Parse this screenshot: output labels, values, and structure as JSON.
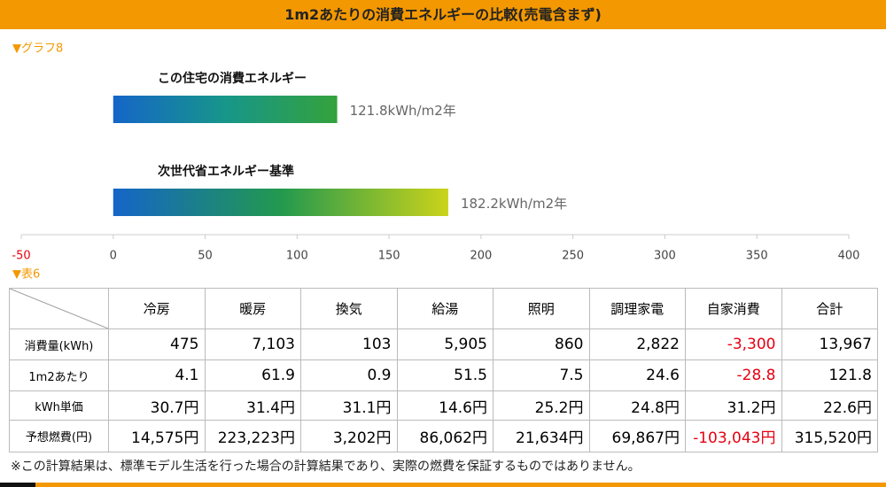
{
  "header": {
    "title": "1m2あたりの消費エネルギーの比較(売電含まず)"
  },
  "sections": [
    "▼グラフ8",
    "▼表6"
  ],
  "chart_data": {
    "type": "bar",
    "orientation": "horizontal",
    "categories": [
      "この住宅の消費エネルギー",
      "次世代省エネルギー基準"
    ],
    "values": [
      121.8,
      182.2
    ],
    "value_labels": [
      "121.8kWh/m2年",
      "182.2kWh/m2年"
    ],
    "colors": [
      [
        "#1565c8",
        "#17968a",
        "#34a23c"
      ],
      [
        "#1565c8",
        "#22994e",
        "#cbd31a"
      ]
    ],
    "xlim": [
      -50,
      400
    ],
    "xticks": [
      -50,
      0,
      50,
      100,
      150,
      200,
      250,
      300,
      350,
      400
    ],
    "negative_tick_color": "#e60012"
  },
  "table": {
    "columns": [
      "冷房",
      "暖房",
      "換気",
      "給湯",
      "照明",
      "調理家電",
      "自家消費",
      "合計"
    ],
    "rows": [
      [
        "消費量(kWh)",
        "475",
        "7,103",
        "103",
        "5,905",
        "860",
        "2,822",
        "-3,300",
        "13,967"
      ],
      [
        "1m2あたり",
        "4.1",
        "61.9",
        "0.9",
        "51.5",
        "7.5",
        "24.6",
        "-28.8",
        "121.8"
      ],
      [
        "kWh単価",
        "30.7円",
        "31.4円",
        "31.1円",
        "14.6円",
        "25.2円",
        "24.8円",
        "31.2円",
        "22.6円"
      ],
      [
        "予想燃費(円)",
        "14,575円",
        "223,223円",
        "3,202円",
        "86,062円",
        "21,634円",
        "69,867円",
        "-103,043円",
        "315,520円"
      ]
    ],
    "negative_color": "#e60012"
  },
  "footnote": "※この計算結果は、標準モデル生活を行った場合の計算結果であり、実際の燃費を保証するものではありません。"
}
